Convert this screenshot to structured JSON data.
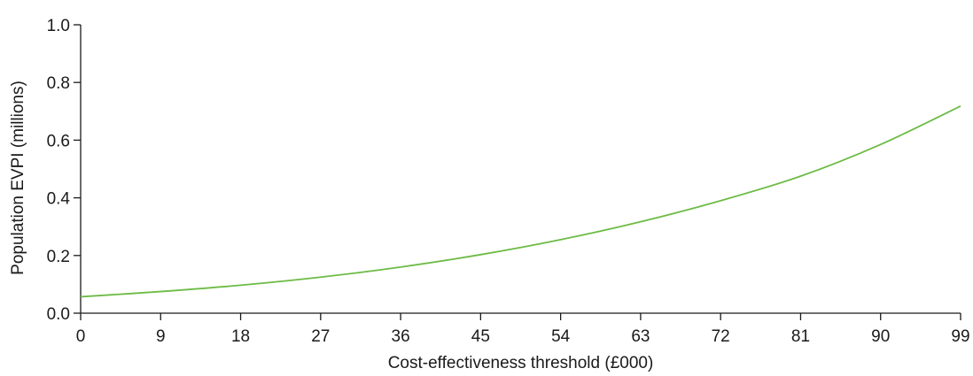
{
  "chart_data": {
    "type": "line",
    "xlabel": "Cost-effectiveness threshold (£000)",
    "ylabel": "Population EVPI (millions)",
    "xlim": [
      0,
      99
    ],
    "ylim": [
      0,
      1.0
    ],
    "x_ticks": [
      0,
      9,
      18,
      27,
      36,
      45,
      54,
      63,
      72,
      81,
      90,
      99
    ],
    "x_tick_labels": [
      "0",
      "9",
      "18",
      "27",
      "36",
      "45",
      "54",
      "63",
      "72",
      "81",
      "90",
      "99"
    ],
    "y_ticks": [
      0,
      0.2,
      0.4,
      0.6,
      0.8,
      1.0
    ],
    "y_tick_labels": [
      "0.0",
      "0.2",
      "0.4",
      "0.6",
      "0.8",
      "1.0"
    ],
    "grid": false,
    "legend": "none",
    "series": [
      {
        "color": "#6dbb45",
        "x": [
          0,
          9,
          18,
          27,
          36,
          45,
          54,
          63,
          72,
          81,
          90,
          99
        ],
        "y": [
          0.057,
          0.075,
          0.097,
          0.125,
          0.16,
          0.203,
          0.255,
          0.317,
          0.39,
          0.475,
          0.585,
          0.718
        ]
      }
    ]
  }
}
